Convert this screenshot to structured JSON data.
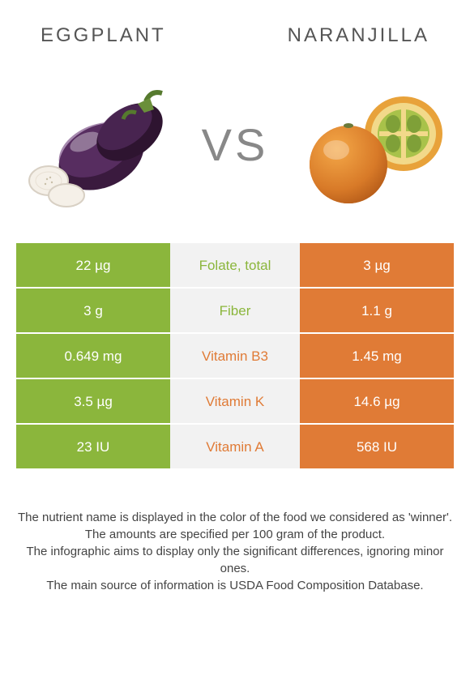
{
  "header": {
    "left_title": "Eggplant",
    "right_title": "Naranjilla"
  },
  "vs_label": "VS",
  "colors": {
    "left_food": "#8bb63c",
    "right_food": "#e07b36",
    "mid_bg": "#f2f2f2",
    "mid_text_left_winner": "#8bb63c",
    "mid_text_right_winner": "#e07b36"
  },
  "rows": [
    {
      "left": "22 µg",
      "label": "Folate, total",
      "right": "3 µg",
      "winner": "left"
    },
    {
      "left": "3 g",
      "label": "Fiber",
      "right": "1.1 g",
      "winner": "left"
    },
    {
      "left": "0.649 mg",
      "label": "Vitamin B3",
      "right": "1.45 mg",
      "winner": "right"
    },
    {
      "left": "3.5 µg",
      "label": "Vitamin K",
      "right": "14.6 µg",
      "winner": "right"
    },
    {
      "left": "23 IU",
      "label": "Vitamin A",
      "right": "568 IU",
      "winner": "right"
    }
  ],
  "footer": {
    "line1": "The nutrient name is displayed in the color of the food we considered as 'winner'.",
    "line2": "The amounts are specified per 100 gram of the product.",
    "line3": "The infographic aims to display only the significant differences, ignoring minor ones.",
    "line4": "The main source of information is USDA Food Composition Database."
  }
}
